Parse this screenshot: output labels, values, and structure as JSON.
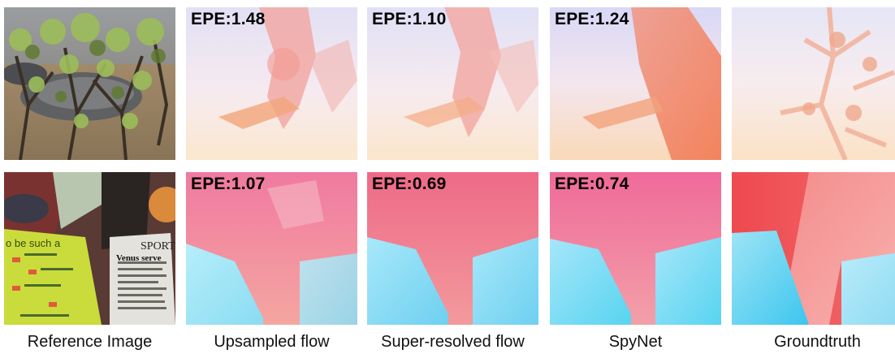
{
  "columns": [
    {
      "caption": "Reference Image"
    },
    {
      "caption": "Upsampled flow"
    },
    {
      "caption": "Super-resolved flow"
    },
    {
      "caption": "SpyNet"
    },
    {
      "caption": "Groundtruth"
    }
  ],
  "rows": [
    {
      "labels": [
        "EPE:1.48",
        "EPE:1.10",
        "EPE:1.24"
      ]
    },
    {
      "labels": [
        "EPE:1.07",
        "EPE:0.69",
        "EPE:0.74"
      ]
    }
  ],
  "embedded_text": {
    "newspaper_heading": "SPORT",
    "newspaper_line": "Venus serve",
    "poster_line": "o be such a"
  },
  "colors": {
    "flow_pink": "#f48a9c",
    "flow_cyan": "#58d4f0",
    "flow_orange": "#f3a57a",
    "flow_lavender": "#dcdcf4"
  }
}
